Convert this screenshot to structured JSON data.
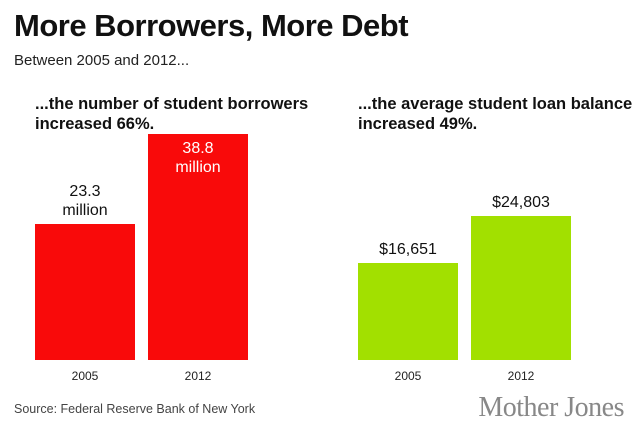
{
  "title": "More Borrowers, More Debt",
  "subtitle": "Between 2005 and 2012...",
  "source": "Source: Federal Reserve Bank of New York",
  "brand": "Mother Jones",
  "chart_data": [
    {
      "type": "bar",
      "title": "...the number of student borrowers increased 66%.",
      "categories": [
        "2005",
        "2012"
      ],
      "values": [
        23.3,
        38.8
      ],
      "value_labels": [
        "23.3 million",
        "38.8 million"
      ],
      "color": "#f90a0a",
      "ylim": [
        0,
        40
      ]
    },
    {
      "type": "bar",
      "title": "...the average student loan balance increased 49%.",
      "categories": [
        "2005",
        "2012"
      ],
      "values": [
        16651,
        24803
      ],
      "value_labels": [
        "$16,651",
        "$24,803"
      ],
      "color": "#a2e000",
      "ylim": [
        0,
        40000
      ]
    }
  ]
}
